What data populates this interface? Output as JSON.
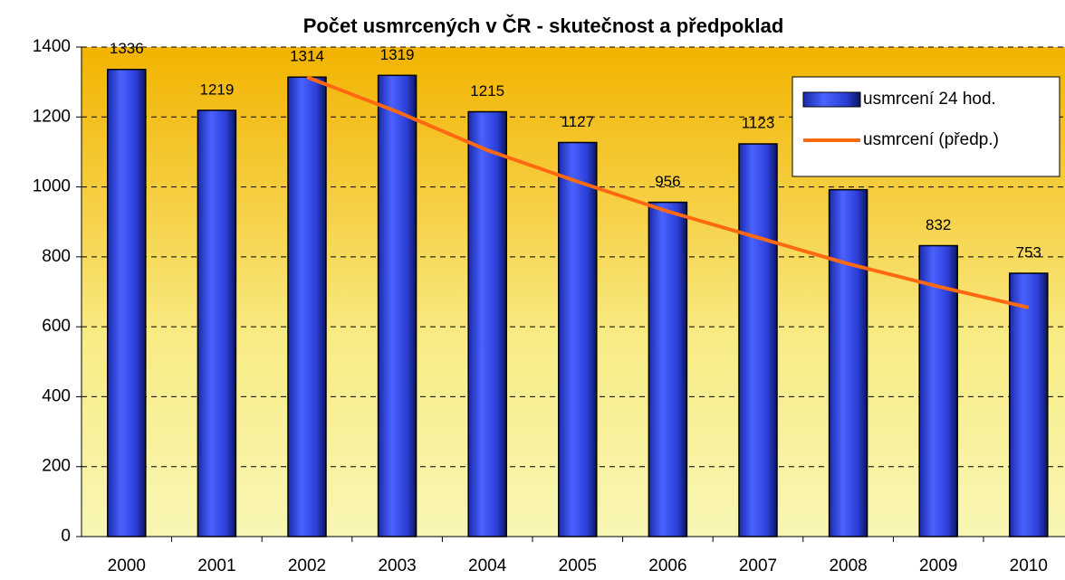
{
  "chart_data": {
    "type": "bar",
    "title": "Počet usmrcených v ČR - skutečnost a předpoklad",
    "categories": [
      "2000",
      "2001",
      "2002",
      "2003",
      "2004",
      "2005",
      "2006",
      "2007",
      "2008",
      "2009",
      "2010"
    ],
    "series": [
      {
        "name": "usmrcení 24 hod.",
        "color": "#2b3fd6",
        "values": [
          1336,
          1219,
          1314,
          1319,
          1215,
          1127,
          956,
          1123,
          992,
          832,
          753
        ]
      },
      {
        "name": "usmrcení (předp.)",
        "type": "line",
        "color": "#ff6a10",
        "values": [
          null,
          null,
          1314,
          1215,
          1105,
          1015,
          930,
          855,
          780,
          715,
          655
        ]
      }
    ],
    "ylim": [
      0,
      1400
    ],
    "yticks": [
      0,
      200,
      400,
      600,
      800,
      1000,
      1200,
      1400
    ],
    "grid": true,
    "legend": "top-right"
  }
}
